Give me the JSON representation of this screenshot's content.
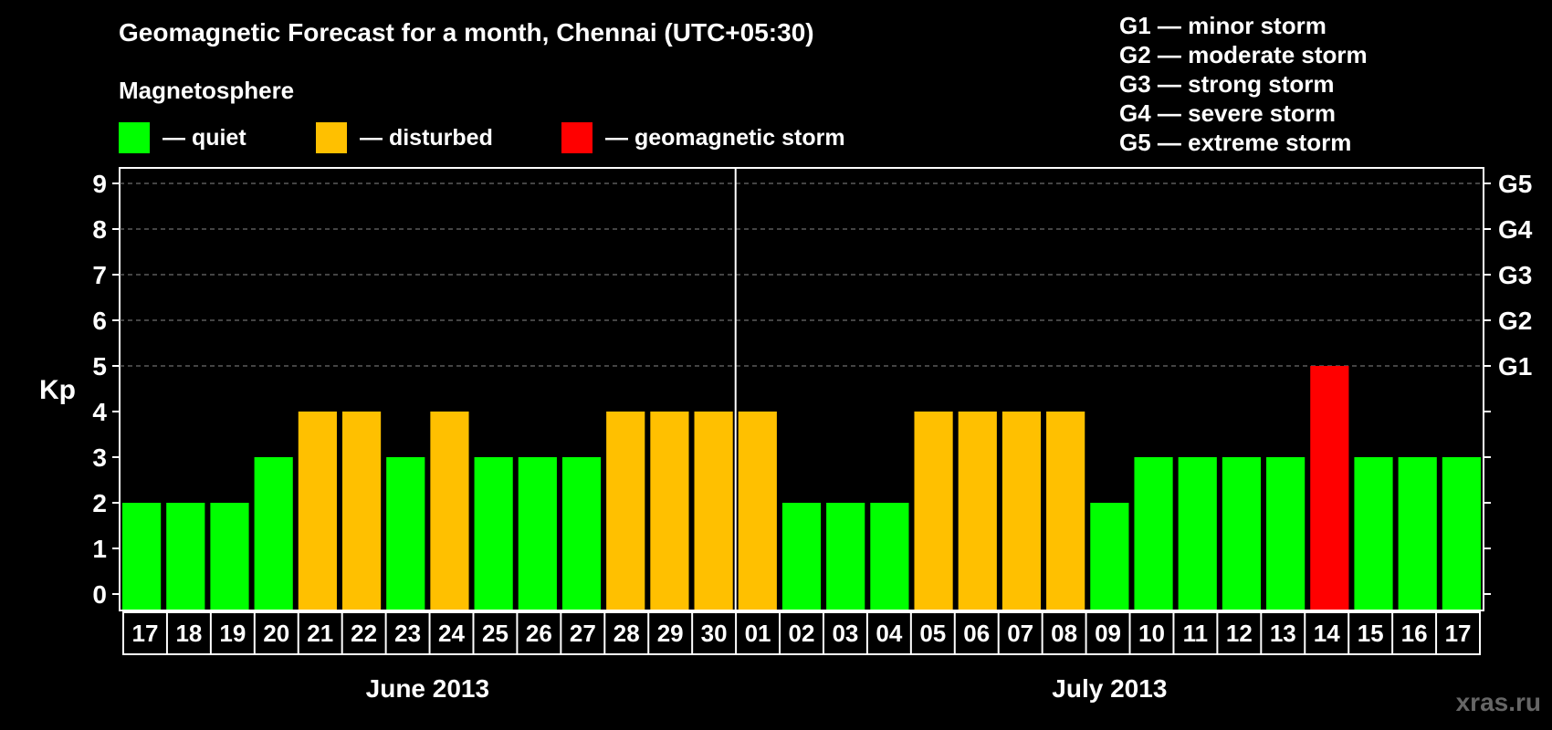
{
  "title": "Geomagnetic Forecast for a month, Chennai (UTC+05:30)",
  "magnetosphere": {
    "title": "Magnetosphere",
    "items": [
      {
        "label": "— quiet",
        "color": "#00ff00"
      },
      {
        "label": "— disturbed",
        "color": "#ffc000"
      },
      {
        "label": "— geomagnetic storm",
        "color": "#ff0000"
      }
    ]
  },
  "storm_legend": [
    "G1 — minor storm",
    "G2 — moderate storm",
    "G3 — strong storm",
    "G4 — severe storm",
    "G5 — extreme storm"
  ],
  "watermark": "xras.ru",
  "chart_data": {
    "type": "bar",
    "ylabel": "Kp",
    "ylim": [
      0,
      9
    ],
    "y_ticks": [
      "0",
      "1",
      "2",
      "3",
      "4",
      "5",
      "6",
      "7",
      "8",
      "9"
    ],
    "right_ticks": [
      {
        "kp": 5,
        "label": "G1"
      },
      {
        "kp": 6,
        "label": "G2"
      },
      {
        "kp": 7,
        "label": "G3"
      },
      {
        "kp": 8,
        "label": "G4"
      },
      {
        "kp": 9,
        "label": "G5"
      }
    ],
    "grid": "dashed at Kp 5–9",
    "months": [
      {
        "label": "June 2013",
        "start": 0,
        "count": 14
      },
      {
        "label": "July 2013",
        "start": 14,
        "count": 17
      }
    ],
    "categories": [
      "17",
      "18",
      "19",
      "20",
      "21",
      "22",
      "23",
      "24",
      "25",
      "26",
      "27",
      "28",
      "29",
      "30",
      "01",
      "02",
      "03",
      "04",
      "05",
      "06",
      "07",
      "08",
      "09",
      "10",
      "11",
      "12",
      "13",
      "14",
      "15",
      "16",
      "17"
    ],
    "values": [
      2,
      2,
      2,
      3,
      4,
      4,
      3,
      4,
      3,
      3,
      3,
      4,
      4,
      4,
      4,
      2,
      2,
      2,
      4,
      4,
      4,
      4,
      2,
      3,
      3,
      3,
      3,
      5,
      3,
      3,
      3
    ],
    "colors": {
      "quiet": "#00ff00",
      "disturbed": "#ffc000",
      "storm": "#ff0000"
    }
  }
}
